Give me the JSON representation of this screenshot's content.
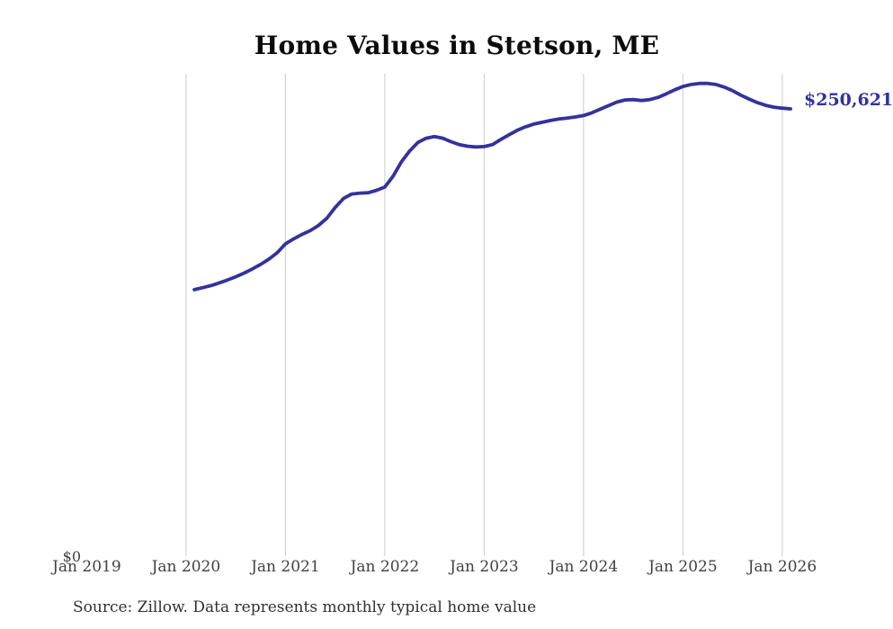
{
  "title": "Home Values in Stetson, ME",
  "source_note": "Source: Zillow. Data represents monthly typical home value",
  "end_label": "$250,621",
  "y_zero_label": "$0",
  "colors": {
    "line": "#32329E",
    "grid": "#cbcbcb",
    "axis_text": "#414141",
    "title_text": "#0b0b0b",
    "source_text": "#303030",
    "background": "#ffffff"
  },
  "chart_data": {
    "type": "line",
    "title": "Home Values in Stetson, ME",
    "xlabel": "",
    "ylabel": "",
    "ylim": [
      0,
      270000
    ],
    "grid": "vertical-only",
    "legend": "none",
    "x_tick_labels": [
      "Jan 2019",
      "Jan 2020",
      "Jan 2021",
      "Jan 2022",
      "Jan 2023",
      "Jan 2024",
      "Jan 2025",
      "Jan 2026"
    ],
    "x_tick_years": [
      2019,
      2020,
      2021,
      2022,
      2023,
      2024,
      2025,
      2026
    ],
    "grid_years": [
      2020,
      2021,
      2022,
      2023,
      2024,
      2025,
      2026
    ],
    "y_tick_labels": [
      "$0"
    ],
    "last_value": 250621,
    "last_value_label": "$250,621",
    "series_name": "Monthly typical home value",
    "months": [
      "2020-02",
      "2020-03",
      "2020-04",
      "2020-05",
      "2020-06",
      "2020-07",
      "2020-08",
      "2020-09",
      "2020-10",
      "2020-11",
      "2020-12",
      "2021-01",
      "2021-02",
      "2021-03",
      "2021-04",
      "2021-05",
      "2021-06",
      "2021-07",
      "2021-08",
      "2021-09",
      "2021-10",
      "2021-11",
      "2021-12",
      "2022-01",
      "2022-02",
      "2022-03",
      "2022-04",
      "2022-05",
      "2022-06",
      "2022-07",
      "2022-08",
      "2022-09",
      "2022-10",
      "2022-11",
      "2022-12",
      "2023-01",
      "2023-02",
      "2023-03",
      "2023-04",
      "2023-05",
      "2023-06",
      "2023-07",
      "2023-08",
      "2023-09",
      "2023-10",
      "2023-11",
      "2023-12",
      "2024-01",
      "2024-02",
      "2024-03",
      "2024-04",
      "2024-05",
      "2024-06",
      "2024-07",
      "2024-08",
      "2024-09",
      "2024-10",
      "2024-11",
      "2024-12",
      "2025-01",
      "2025-02",
      "2025-03",
      "2025-04",
      "2025-05",
      "2025-06",
      "2025-07",
      "2025-08",
      "2025-09",
      "2025-10",
      "2025-11",
      "2025-12",
      "2026-01",
      "2026-02"
    ],
    "values": [
      149300,
      150400,
      151600,
      153100,
      154700,
      156500,
      158600,
      160900,
      163500,
      166400,
      170000,
      175000,
      177800,
      180300,
      182400,
      185300,
      189300,
      195300,
      200400,
      202900,
      203400,
      203600,
      205000,
      206800,
      212900,
      220900,
      227000,
      231800,
      234200,
      235100,
      234200,
      232200,
      230600,
      229700,
      229300,
      229500,
      230600,
      233500,
      236100,
      238600,
      240600,
      242100,
      243100,
      244100,
      244900,
      245500,
      246100,
      246900,
      248400,
      250400,
      252400,
      254400,
      255600,
      255800,
      255300,
      255800,
      257100,
      259100,
      261300,
      263200,
      264300,
      264900,
      264900,
      264300,
      262800,
      260800,
      258300,
      256100,
      254100,
      252600,
      251600,
      251000,
      250621
    ]
  }
}
